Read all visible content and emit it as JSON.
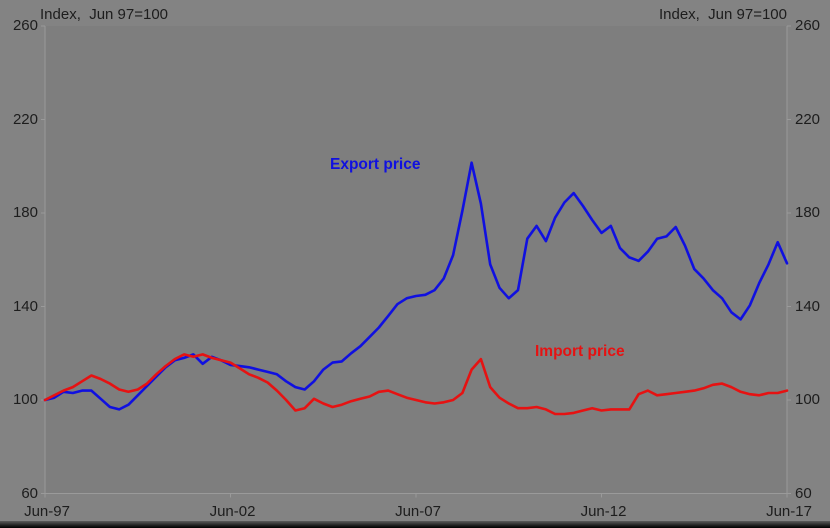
{
  "chart_data": {
    "type": "line",
    "title_left": "Index,  Jun 97=100",
    "title_right": "Index,  Jun 97=100",
    "x_tick_labels": [
      "Jun-97",
      "Jun-02",
      "Jun-07",
      "Jun-12",
      "Jun-17"
    ],
    "y_ticks": [
      60,
      100,
      140,
      180,
      220,
      260
    ],
    "ylim": [
      60,
      260
    ],
    "x_range": [
      "Jun-1997",
      "Jun-2017"
    ],
    "x_frequency": "quarterly",
    "grid": false,
    "legend_position": "inline-labels-on-chart",
    "background": "#838383",
    "plot_background": "#7e7e7e",
    "axis_color": "#9a9a9a",
    "text_color": "#1d1d1d",
    "series": [
      {
        "name": "Export price",
        "color": "#1010e0",
        "values": [
          100,
          101,
          103.5,
          103,
          104,
          104,
          100.5,
          97,
          96,
          98,
          102,
          106,
          110,
          114,
          117,
          118,
          119.5,
          115.5,
          118.5,
          117,
          115,
          114.5,
          114,
          113,
          112,
          111,
          108,
          105.5,
          104.5,
          108,
          113,
          116,
          116.5,
          120,
          123,
          127,
          131,
          136,
          141,
          143.5,
          144.5,
          145,
          147,
          152,
          162,
          181,
          201.5,
          184,
          158,
          148,
          143.5,
          147,
          169,
          174.5,
          168,
          178,
          184.5,
          188.5,
          183,
          177,
          171.5,
          174.5,
          165,
          161,
          159.5,
          163.5,
          169,
          170,
          174,
          166,
          156,
          152,
          147,
          143.5,
          137.5,
          134.5,
          140.5,
          150,
          158,
          167.5,
          158.5
        ]
      },
      {
        "name": "Import price",
        "color": "#e61212",
        "values": [
          100,
          102,
          104,
          105.5,
          108,
          110.5,
          109,
          107,
          104.5,
          103.5,
          104.5,
          107,
          111,
          114.5,
          117.5,
          119.5,
          118.5,
          119.5,
          118,
          117,
          116,
          113.5,
          111,
          109.5,
          107.5,
          104,
          100,
          95.5,
          96.5,
          100.5,
          98.5,
          97,
          98,
          99.5,
          100.5,
          101.5,
          103.5,
          104,
          102.5,
          101,
          100,
          99,
          98.5,
          99,
          100,
          103,
          113,
          117.5,
          105.5,
          101,
          98.5,
          96.5,
          96.5,
          97,
          96,
          94,
          94,
          94.5,
          95.5,
          96.5,
          95.5,
          96,
          96,
          96,
          102.5,
          104,
          102,
          102.5,
          103,
          103.5,
          104,
          105,
          106.5,
          107,
          105.5,
          103.5,
          102.5,
          102,
          103,
          103,
          104
        ]
      }
    ]
  }
}
